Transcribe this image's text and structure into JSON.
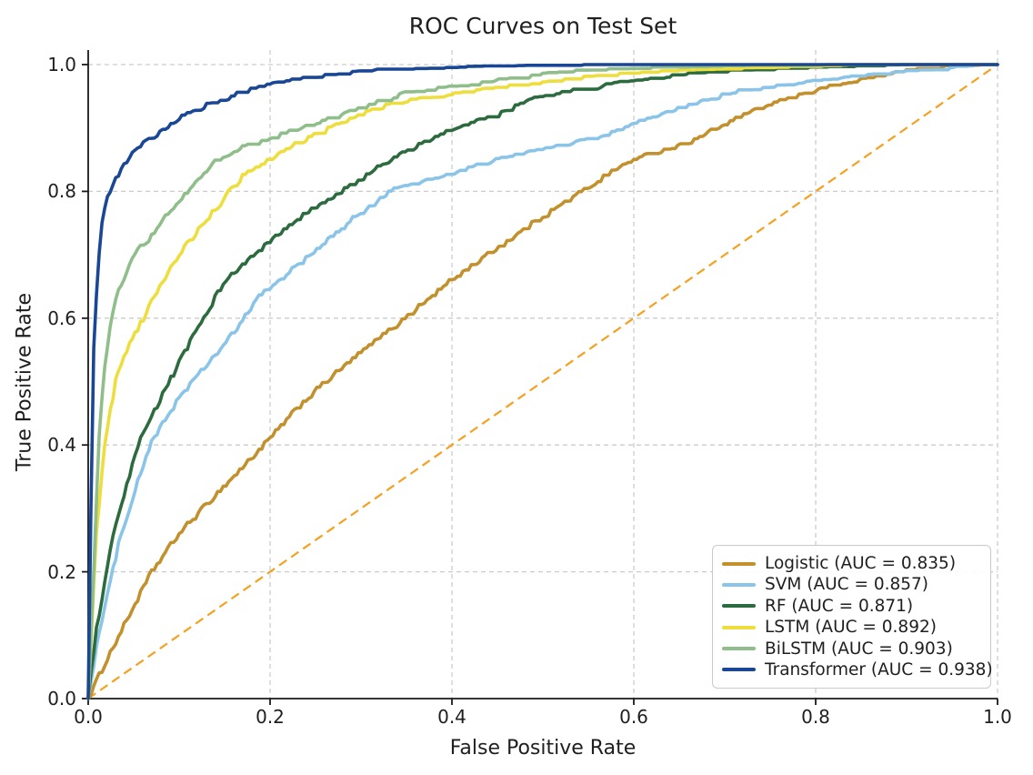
{
  "chart_data": {
    "type": "line",
    "title": "ROC Curves on Test Set",
    "xlabel": "False Positive Rate",
    "ylabel": "True Positive Rate",
    "xlim": [
      0.0,
      1.0
    ],
    "ylim": [
      0.0,
      1.0
    ],
    "xticks": [
      0.0,
      0.2,
      0.4,
      0.6,
      0.8,
      1.0
    ],
    "yticks": [
      0.0,
      0.2,
      0.4,
      0.6,
      0.8,
      1.0
    ],
    "xtick_labels": [
      "0.0",
      "0.2",
      "0.4",
      "0.6",
      "0.8",
      "1.0"
    ],
    "ytick_labels": [
      "0.0",
      "0.2",
      "0.4",
      "0.6",
      "0.8",
      "1.0"
    ],
    "grid": true,
    "grid_style": "dashed",
    "grid_color": "#cccccc",
    "axis_color": "#1a1a1a",
    "legend_position": "lower right",
    "diagonal_reference": {
      "name": "chance-line",
      "style": "dashed",
      "color": "#F5A11F",
      "x": [
        0.0,
        1.0
      ],
      "y": [
        0.0,
        1.0
      ]
    },
    "series": [
      {
        "name": "Logistic",
        "auc": 0.835,
        "legend_label": "Logistic (AUC = 0.835)",
        "color": "#C2912E",
        "x": [
          0,
          0.02,
          0.05,
          0.07,
          0.1,
          0.133,
          0.17,
          0.2,
          0.236,
          0.27,
          0.3,
          0.34,
          0.37,
          0.4,
          0.44,
          0.47,
          0.5,
          0.533,
          0.57,
          0.6,
          0.63,
          0.66,
          0.7,
          0.74,
          0.78,
          0.82,
          0.86,
          0.9,
          0.95,
          1.0
        ],
        "y": [
          0,
          0.06,
          0.145,
          0.2,
          0.26,
          0.31,
          0.365,
          0.41,
          0.467,
          0.51,
          0.545,
          0.59,
          0.625,
          0.66,
          0.7,
          0.73,
          0.76,
          0.79,
          0.825,
          0.85,
          0.862,
          0.875,
          0.905,
          0.93,
          0.95,
          0.965,
          0.978,
          0.988,
          0.995,
          1.0
        ]
      },
      {
        "name": "SVM",
        "auc": 0.857,
        "legend_label": "SVM (AUC = 0.857)",
        "color": "#8AC4E8",
        "x": [
          0,
          0.01,
          0.036,
          0.068,
          0.1,
          0.13,
          0.165,
          0.185,
          0.21,
          0.25,
          0.29,
          0.333,
          0.37,
          0.4,
          0.44,
          0.47,
          0.51,
          0.566,
          0.6,
          0.653,
          0.71,
          0.76,
          0.8,
          0.85,
          0.9,
          0.95,
          1.0
        ],
        "y": [
          0,
          0.09,
          0.26,
          0.4,
          0.475,
          0.525,
          0.585,
          0.63,
          0.66,
          0.705,
          0.755,
          0.8,
          0.815,
          0.826,
          0.845,
          0.855,
          0.868,
          0.884,
          0.905,
          0.93,
          0.955,
          0.965,
          0.972,
          0.98,
          0.986,
          0.992,
          1.0
        ]
      },
      {
        "name": "RF",
        "auc": 0.871,
        "legend_label": "RF (AUC = 0.871)",
        "color": "#2C6B3E",
        "x": [
          0,
          0.008,
          0.028,
          0.055,
          0.08,
          0.115,
          0.148,
          0.175,
          0.205,
          0.24,
          0.27,
          0.3,
          0.34,
          0.386,
          0.42,
          0.45,
          0.49,
          0.533,
          0.58,
          0.63,
          0.666,
          0.72,
          0.78,
          0.85,
          0.92,
          1.0
        ],
        "y": [
          0,
          0.1,
          0.26,
          0.4,
          0.475,
          0.57,
          0.654,
          0.69,
          0.726,
          0.765,
          0.79,
          0.82,
          0.855,
          0.888,
          0.905,
          0.92,
          0.945,
          0.958,
          0.968,
          0.977,
          0.984,
          0.988,
          0.991,
          0.994,
          0.997,
          1.0
        ]
      },
      {
        "name": "LSTM",
        "auc": 0.892,
        "legend_label": "LSTM (AUC = 0.892)",
        "color": "#EDDE3D",
        "x": [
          0,
          0.009,
          0.018,
          0.03,
          0.045,
          0.061,
          0.08,
          0.1,
          0.125,
          0.15,
          0.171,
          0.2,
          0.23,
          0.26,
          0.3,
          0.331,
          0.37,
          0.42,
          0.47,
          0.533,
          0.6,
          0.67,
          0.75,
          0.85,
          1.0
        ],
        "y": [
          0,
          0.26,
          0.4,
          0.5,
          0.56,
          0.6,
          0.655,
          0.7,
          0.745,
          0.79,
          0.825,
          0.85,
          0.875,
          0.895,
          0.92,
          0.935,
          0.945,
          0.955,
          0.965,
          0.977,
          0.984,
          0.988,
          0.992,
          0.996,
          1.0
        ]
      },
      {
        "name": "BiLSTM",
        "auc": 0.903,
        "legend_label": "BiLSTM (AUC = 0.903)",
        "color": "#8FBE8B",
        "x": [
          0,
          0.008,
          0.011,
          0.018,
          0.025,
          0.035,
          0.05,
          0.07,
          0.09,
          0.11,
          0.138,
          0.17,
          0.211,
          0.25,
          0.3,
          0.348,
          0.4,
          0.46,
          0.533,
          0.6,
          0.7,
          0.8,
          0.9,
          1.0
        ],
        "y": [
          0,
          0.26,
          0.4,
          0.52,
          0.6,
          0.65,
          0.7,
          0.73,
          0.77,
          0.8,
          0.845,
          0.868,
          0.888,
          0.905,
          0.93,
          0.953,
          0.963,
          0.975,
          0.988,
          0.991,
          0.994,
          0.996,
          0.998,
          1.0
        ]
      },
      {
        "name": "Transformer",
        "auc": 0.938,
        "legend_label": "Transformer (AUC = 0.938)",
        "color": "#1A4795",
        "x": [
          0,
          0.003,
          0.006,
          0.01,
          0.014,
          0.02,
          0.03,
          0.045,
          0.06,
          0.08,
          0.1,
          0.128,
          0.16,
          0.198,
          0.25,
          0.33,
          0.45,
          0.6,
          0.8,
          1.0
        ],
        "y": [
          0,
          0.3,
          0.55,
          0.66,
          0.74,
          0.79,
          0.82,
          0.855,
          0.875,
          0.895,
          0.915,
          0.934,
          0.951,
          0.968,
          0.98,
          0.99,
          0.994,
          0.997,
          0.999,
          1.0
        ]
      }
    ]
  }
}
